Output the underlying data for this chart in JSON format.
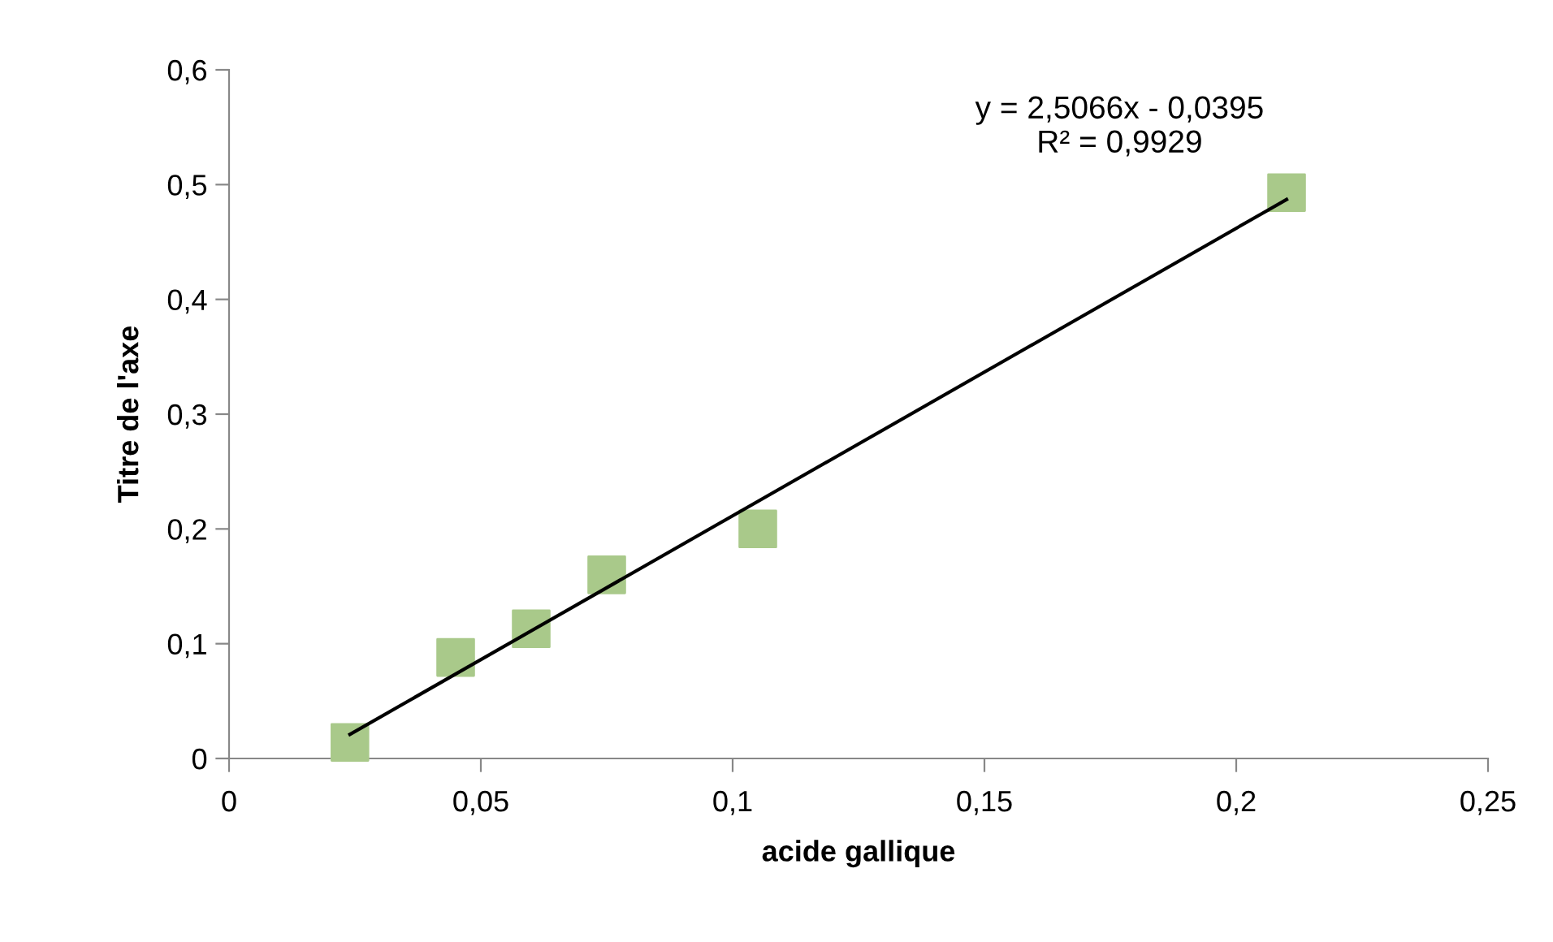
{
  "chart_data": {
    "type": "scatter",
    "xlabel": "acide gallique",
    "ylabel": "Titre de l'axe",
    "series": [
      {
        "color": "#a9c98a",
        "marker": "square",
        "x": [
          0.024,
          0.045,
          0.06,
          0.075,
          0.105,
          0.21
        ],
        "values": [
          0.014,
          0.088,
          0.113,
          0.16,
          0.2,
          0.493
        ]
      },
      {
        "type": "line",
        "color": "#000000",
        "marker": "none",
        "line_style": "solid",
        "x": [
          0.024,
          0.21
        ],
        "values": [
          0.021,
          0.487
        ]
      }
    ],
    "annotations": [
      "y = 2,5066x - 0,0395\nR² = 0,9929"
    ],
    "xlim": [
      0,
      0.25
    ],
    "xticks": [
      {
        "value": 0,
        "label": "0"
      },
      {
        "value": 0.05,
        "label": "0,05"
      },
      {
        "value": 0.1,
        "label": "0,1"
      },
      {
        "value": 0.15,
        "label": "0,15"
      },
      {
        "value": 0.2,
        "label": "0,2"
      },
      {
        "value": 0.25,
        "label": "0,25"
      }
    ],
    "ylim": [
      0,
      0.6
    ],
    "yticks": [
      {
        "value": 0,
        "label": "0"
      },
      {
        "value": 0.1,
        "label": "0,1"
      },
      {
        "value": 0.2,
        "label": "0,2"
      },
      {
        "value": 0.3,
        "label": "0,3"
      },
      {
        "value": 0.4,
        "label": "0,4"
      },
      {
        "value": 0.5,
        "label": "0,5"
      },
      {
        "value": 0.6,
        "label": "0,6"
      }
    ],
    "grid": false,
    "legend": false
  }
}
